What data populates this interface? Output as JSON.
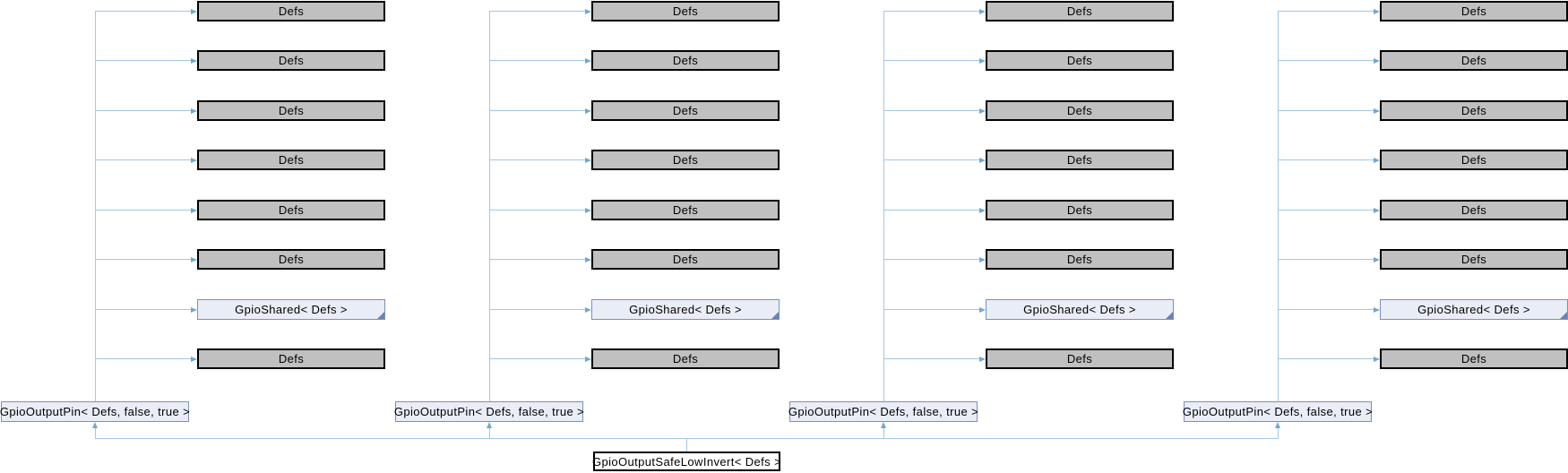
{
  "colors": {
    "background": "#ffffff",
    "edge_line": "#a3c7e3",
    "edge_arrow": "#6fa8d4",
    "external_node_fill": "#c0c0c0",
    "external_node_border": "#000000",
    "linked_node_fill": "#e9edf6",
    "linked_node_border": "#7b90bd",
    "fold_corner": "#6c82b4",
    "current_node_fill": "#ffffff",
    "current_node_border": "#000000",
    "text": "#000000"
  },
  "diagram": {
    "kind": "class-inheritance-graph",
    "bottom_node": {
      "label": "GpioOutputSafeLowInvert< Defs >",
      "kind": "current"
    },
    "columns": [
      {
        "pin": {
          "label": "GpioOutputPin< Defs, false, true >",
          "kind": "linked"
        },
        "parents": [
          {
            "label": "Defs",
            "kind": "external"
          },
          {
            "label": "Defs",
            "kind": "external"
          },
          {
            "label": "Defs",
            "kind": "external"
          },
          {
            "label": "Defs",
            "kind": "external"
          },
          {
            "label": "Defs",
            "kind": "external"
          },
          {
            "label": "Defs",
            "kind": "external"
          },
          {
            "label": "GpioShared< Defs >",
            "kind": "linked",
            "fold": true
          },
          {
            "label": "Defs",
            "kind": "external"
          }
        ]
      },
      {
        "pin": {
          "label": "GpioOutputPin< Defs, false, true >",
          "kind": "linked"
        },
        "parents": [
          {
            "label": "Defs",
            "kind": "external"
          },
          {
            "label": "Defs",
            "kind": "external"
          },
          {
            "label": "Defs",
            "kind": "external"
          },
          {
            "label": "Defs",
            "kind": "external"
          },
          {
            "label": "Defs",
            "kind": "external"
          },
          {
            "label": "Defs",
            "kind": "external"
          },
          {
            "label": "GpioShared< Defs >",
            "kind": "linked",
            "fold": true
          },
          {
            "label": "Defs",
            "kind": "external"
          }
        ]
      },
      {
        "pin": {
          "label": "GpioOutputPin< Defs, false, true >",
          "kind": "linked"
        },
        "parents": [
          {
            "label": "Defs",
            "kind": "external"
          },
          {
            "label": "Defs",
            "kind": "external"
          },
          {
            "label": "Defs",
            "kind": "external"
          },
          {
            "label": "Defs",
            "kind": "external"
          },
          {
            "label": "Defs",
            "kind": "external"
          },
          {
            "label": "Defs",
            "kind": "external"
          },
          {
            "label": "GpioShared< Defs >",
            "kind": "linked",
            "fold": true
          },
          {
            "label": "Defs",
            "kind": "external"
          }
        ]
      },
      {
        "pin": {
          "label": "GpioOutputPin< Defs, false, true >",
          "kind": "linked"
        },
        "parents": [
          {
            "label": "Defs",
            "kind": "external"
          },
          {
            "label": "Defs",
            "kind": "external"
          },
          {
            "label": "Defs",
            "kind": "external"
          },
          {
            "label": "Defs",
            "kind": "external"
          },
          {
            "label": "Defs",
            "kind": "external"
          },
          {
            "label": "Defs",
            "kind": "external"
          },
          {
            "label": "GpioShared< Defs >",
            "kind": "linked",
            "fold": true
          },
          {
            "label": "Defs",
            "kind": "external"
          }
        ]
      }
    ]
  }
}
